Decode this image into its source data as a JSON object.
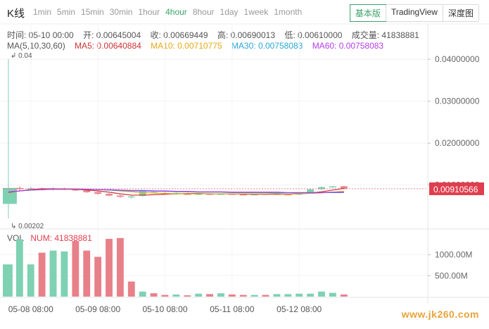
{
  "header": {
    "title": "K线",
    "periods": [
      "1min",
      "5min",
      "15min",
      "30min",
      "1hour",
      "4hour",
      "8hour",
      "1day",
      "1week",
      "1month"
    ],
    "active_period": "4hour",
    "modes": [
      "基本版",
      "TradingView",
      "深度图"
    ],
    "active_mode": "基本版"
  },
  "ohlc": {
    "time": "时间: 05-10 00:00",
    "open": "开: 0.00645004",
    "close": "收: 0.00669449",
    "high": "高: 0.00690013",
    "low": "低: 0.00610000",
    "volume": "成交量: 41838881"
  },
  "ma": {
    "label": "MA(5,10,30,60)",
    "ma5": "MA5: 0.00640884",
    "ma10": "MA10: 0.00710775",
    "ma30": "MA30: 0.00758083",
    "ma60": "MA60: 0.00758083"
  },
  "vol_legend": {
    "label": "VOL",
    "num": "NUM: 41838881"
  },
  "colors": {
    "up": "#7fd1b4",
    "down": "#e8808a",
    "ma5": "#cc3333",
    "ma10": "#e6a817",
    "ma30": "#2aa6d8",
    "ma60": "#b23de6",
    "price_tag": "#e03e4e",
    "accent": "#3aa36a"
  },
  "watermark": "www.jk260.com",
  "chart_data": {
    "type": "candlestick",
    "price_axis": {
      "ticks": [
        "0.04000000",
        "0.03000000",
        "0.02000000",
        "0.01000000"
      ],
      "tick_values": [
        0.04,
        0.03,
        0.02,
        0.01
      ],
      "range": [
        0.0007,
        0.0417
      ]
    },
    "volume_axis": {
      "ticks": [
        "1000.00M",
        "500.00M"
      ],
      "tick_values": [
        1000,
        500
      ],
      "unit": "M",
      "range": [
        0,
        1600
      ]
    },
    "x_ticks": [
      "05-08 08:00",
      "05-09 08:00",
      "05-10 08:00",
      "05-11 08:00",
      "05-12 08:00"
    ],
    "x_tick_index": [
      2,
      8,
      14,
      20,
      26
    ],
    "annotations": {
      "max_label": "0.04",
      "min_label": "0.00202"
    },
    "last_price": "0.00910566",
    "candles": [
      {
        "o": 0.0055,
        "h": 0.04,
        "l": 0.00202,
        "c": 0.0093
      },
      {
        "o": 0.0093,
        "h": 0.0097,
        "l": 0.0087,
        "c": 0.0091
      },
      {
        "o": 0.0091,
        "h": 0.0096,
        "l": 0.0088,
        "c": 0.0092
      },
      {
        "o": 0.0092,
        "h": 0.0094,
        "l": 0.0088,
        "c": 0.009
      },
      {
        "o": 0.009,
        "h": 0.0095,
        "l": 0.0087,
        "c": 0.0092
      },
      {
        "o": 0.0092,
        "h": 0.0094,
        "l": 0.0088,
        "c": 0.009
      },
      {
        "o": 0.009,
        "h": 0.0092,
        "l": 0.0086,
        "c": 0.0087
      },
      {
        "o": 0.0087,
        "h": 0.0089,
        "l": 0.0081,
        "c": 0.0083
      },
      {
        "o": 0.0083,
        "h": 0.0085,
        "l": 0.0077,
        "c": 0.0079
      },
      {
        "o": 0.0079,
        "h": 0.0081,
        "l": 0.0073,
        "c": 0.0075
      },
      {
        "o": 0.0075,
        "h": 0.0077,
        "l": 0.0069,
        "c": 0.0072
      },
      {
        "o": 0.0072,
        "h": 0.0076,
        "l": 0.0067,
        "c": 0.0073
      },
      {
        "o": 0.0074,
        "h": 0.0088,
        "l": 0.0072,
        "c": 0.0085
      },
      {
        "o": 0.0082,
        "h": 0.0089,
        "l": 0.008,
        "c": 0.0083
      },
      {
        "o": 0.0081,
        "h": 0.0084,
        "l": 0.0078,
        "c": 0.008
      },
      {
        "o": 0.0078,
        "h": 0.0083,
        "l": 0.0076,
        "c": 0.0081
      },
      {
        "o": 0.0079,
        "h": 0.0082,
        "l": 0.0077,
        "c": 0.0078
      },
      {
        "o": 0.0078,
        "h": 0.008,
        "l": 0.0076,
        "c": 0.0079
      },
      {
        "o": 0.0079,
        "h": 0.0081,
        "l": 0.0077,
        "c": 0.0078
      },
      {
        "o": 0.0078,
        "h": 0.008,
        "l": 0.0077,
        "c": 0.0079
      },
      {
        "o": 0.0079,
        "h": 0.008,
        "l": 0.0077,
        "c": 0.0078
      },
      {
        "o": 0.0078,
        "h": 0.008,
        "l": 0.0076,
        "c": 0.0077
      },
      {
        "o": 0.0077,
        "h": 0.0079,
        "l": 0.0076,
        "c": 0.0078
      },
      {
        "o": 0.0078,
        "h": 0.008,
        "l": 0.0077,
        "c": 0.0079
      },
      {
        "o": 0.0079,
        "h": 0.008,
        "l": 0.0077,
        "c": 0.0078
      },
      {
        "o": 0.0078,
        "h": 0.0079,
        "l": 0.0076,
        "c": 0.0077
      },
      {
        "o": 0.0077,
        "h": 0.0083,
        "l": 0.0076,
        "c": 0.0082
      },
      {
        "o": 0.0082,
        "h": 0.0091,
        "l": 0.0081,
        "c": 0.009
      },
      {
        "o": 0.009,
        "h": 0.0097,
        "l": 0.0089,
        "c": 0.0095
      },
      {
        "o": 0.0095,
        "h": 0.0098,
        "l": 0.0093,
        "c": 0.0097
      },
      {
        "o": 0.0097,
        "h": 0.0098,
        "l": 0.009,
        "c": 0.0091
      }
    ],
    "ma_lines": {
      "ma5": [
        0.0082,
        0.0086,
        0.0089,
        0.0091,
        0.0091,
        0.0091,
        0.009,
        0.0088,
        0.0086,
        0.0083,
        0.0079,
        0.0076,
        0.0076,
        0.0077,
        0.0078,
        0.0079,
        0.008,
        0.008,
        0.0079,
        0.0079,
        0.0079,
        0.0078,
        0.0078,
        0.0078,
        0.0078,
        0.0078,
        0.0079,
        0.0081,
        0.0084,
        0.0088,
        0.0092
      ],
      "ma10": [
        0.0083,
        0.0086,
        0.0088,
        0.0089,
        0.009,
        0.0091,
        0.0091,
        0.009,
        0.0089,
        0.0088,
        0.0086,
        0.0084,
        0.0082,
        0.0081,
        0.008,
        0.0079,
        0.0079,
        0.0079,
        0.0079,
        0.0079,
        0.0079,
        0.0079,
        0.0079,
        0.0079,
        0.0079,
        0.0078,
        0.0079,
        0.008,
        0.0081,
        0.0083,
        0.0085
      ],
      "ma30": [
        0.0084,
        0.0086,
        0.0088,
        0.0089,
        0.009,
        0.009,
        0.009,
        0.009,
        0.0089,
        0.0088,
        0.0087,
        0.0086,
        0.0086,
        0.0085,
        0.0085,
        0.0084,
        0.0084,
        0.0083,
        0.0083,
        0.0083,
        0.0082,
        0.0082,
        0.0082,
        0.0082,
        0.0081,
        0.0081,
        0.0081,
        0.0081,
        0.0082,
        0.0082,
        0.0082
      ],
      "ma60": [
        0.0084,
        0.0086,
        0.0088,
        0.0089,
        0.009,
        0.009,
        0.009,
        0.009,
        0.0089,
        0.0089,
        0.0088,
        0.0087,
        0.0087,
        0.0086,
        0.0086,
        0.0085,
        0.0085,
        0.0084,
        0.0084,
        0.0084,
        0.0083,
        0.0083,
        0.0083,
        0.0083,
        0.0083,
        0.0082,
        0.0082,
        0.0082,
        0.0082,
        0.0083,
        0.0083
      ]
    },
    "volumes": [
      {
        "v": 770,
        "up": true
      },
      {
        "v": 1370,
        "up": true
      },
      {
        "v": 770,
        "up": true
      },
      {
        "v": 1050,
        "up": false
      },
      {
        "v": 1100,
        "up": true
      },
      {
        "v": 1080,
        "up": true
      },
      {
        "v": 1330,
        "up": false
      },
      {
        "v": 1100,
        "up": false
      },
      {
        "v": 950,
        "up": false
      },
      {
        "v": 1380,
        "up": false
      },
      {
        "v": 1400,
        "up": false
      },
      {
        "v": 360,
        "up": false
      },
      {
        "v": 120,
        "up": true
      },
      {
        "v": 80,
        "up": false
      },
      {
        "v": 40,
        "up": false
      },
      {
        "v": 50,
        "up": true
      },
      {
        "v": 30,
        "up": false
      },
      {
        "v": 70,
        "up": true
      },
      {
        "v": 60,
        "up": false
      },
      {
        "v": 80,
        "up": true
      },
      {
        "v": 50,
        "up": false
      },
      {
        "v": 40,
        "up": false
      },
      {
        "v": 40,
        "up": true
      },
      {
        "v": 40,
        "up": false
      },
      {
        "v": 60,
        "up": true
      },
      {
        "v": 60,
        "up": true
      },
      {
        "v": 70,
        "up": true
      },
      {
        "v": 70,
        "up": true
      },
      {
        "v": 120,
        "up": true
      },
      {
        "v": 90,
        "up": true
      },
      {
        "v": 50,
        "up": false
      }
    ]
  }
}
